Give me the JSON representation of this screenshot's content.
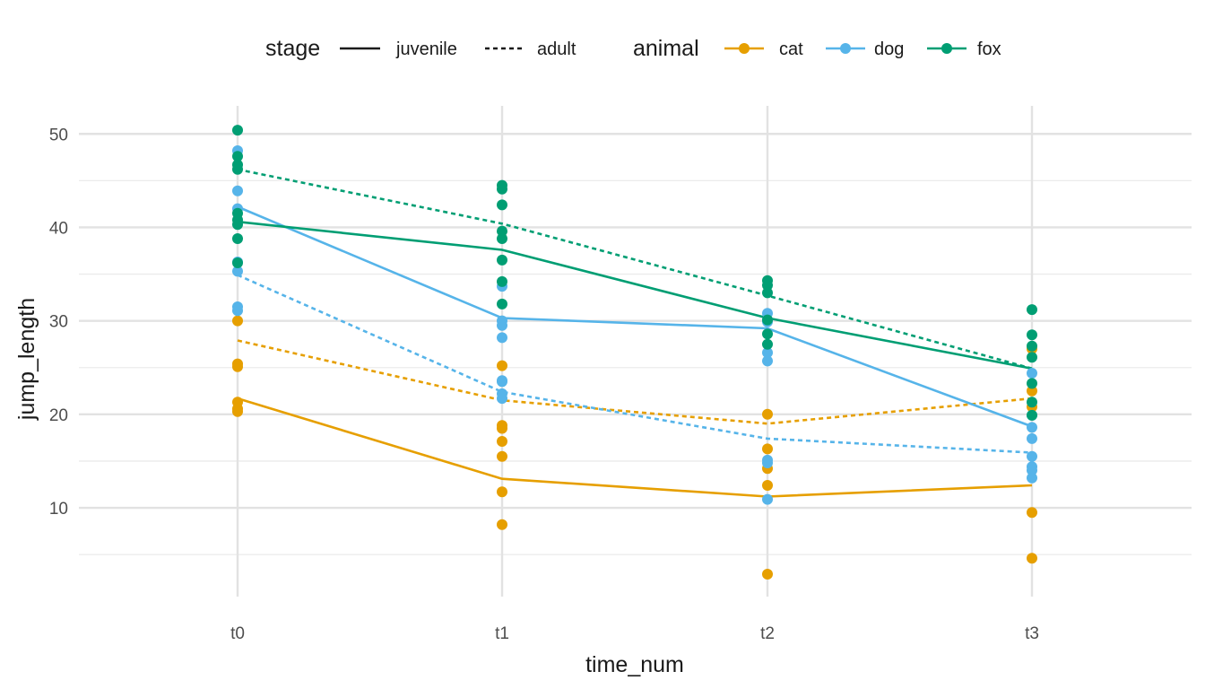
{
  "chart_data": {
    "type": "line",
    "xlabel": "time_num",
    "ylabel": "jump_length",
    "categories": [
      "t0",
      "t1",
      "t2",
      "t3"
    ],
    "ylim": [
      0.5,
      53
    ],
    "y_ticks": [
      10,
      20,
      30,
      40,
      50
    ],
    "y_minor_ticks": [
      5,
      15,
      25,
      35,
      45
    ],
    "grid": true,
    "legend_position": "top",
    "legend": {
      "stage": {
        "title": "stage",
        "entries": [
          {
            "label": "juvenile",
            "linetype": "solid"
          },
          {
            "label": "adult",
            "linetype": "dashed"
          }
        ]
      },
      "animal": {
        "title": "animal",
        "entries": [
          {
            "label": "cat",
            "color": "#E69F00"
          },
          {
            "label": "dog",
            "color": "#56B4E9"
          },
          {
            "label": "fox",
            "color": "#009E73"
          }
        ]
      }
    },
    "series": [
      {
        "animal": "cat",
        "stage": "juvenile",
        "color": "#E69F00",
        "linetype": "solid",
        "values": [
          21.7,
          13.1,
          11.2,
          12.4
        ]
      },
      {
        "animal": "cat",
        "stage": "adult",
        "color": "#E69F00",
        "linetype": "dashed",
        "values": [
          27.9,
          21.5,
          19.0,
          21.7
        ]
      },
      {
        "animal": "dog",
        "stage": "juvenile",
        "color": "#56B4E9",
        "linetype": "solid",
        "values": [
          42.2,
          30.3,
          29.2,
          18.7
        ]
      },
      {
        "animal": "dog",
        "stage": "adult",
        "color": "#56B4E9",
        "linetype": "dashed",
        "values": [
          34.9,
          22.4,
          17.4,
          15.9
        ]
      },
      {
        "animal": "fox",
        "stage": "juvenile",
        "color": "#009E73",
        "linetype": "solid",
        "values": [
          40.6,
          37.6,
          30.3,
          24.9
        ]
      },
      {
        "animal": "fox",
        "stage": "adult",
        "color": "#009E73",
        "linetype": "dashed",
        "values": [
          46.2,
          40.4,
          32.7,
          24.9
        ]
      }
    ],
    "points": [
      {
        "animal": "cat",
        "color": "#E69F00",
        "values": [
          [
            30.0,
            25.4,
            25.1,
            21.3,
            20.6,
            20.3
          ],
          [
            25.2,
            18.8,
            18.5,
            17.1,
            15.5,
            11.7,
            8.2
          ],
          [
            20.0,
            16.3,
            14.2,
            12.4,
            2.9
          ],
          [
            27.0,
            22.5,
            20.8,
            9.5,
            4.6
          ]
        ]
      },
      {
        "animal": "dog",
        "color": "#56B4E9",
        "values": [
          [
            48.2,
            43.9,
            42.0,
            36.3,
            35.3,
            31.5,
            31.1
          ],
          [
            33.7,
            30.0,
            29.5,
            28.2,
            23.6,
            23.5,
            22.2,
            21.7
          ],
          [
            30.8,
            30.1,
            29.9,
            26.6,
            25.7,
            15.1,
            14.8,
            10.9
          ],
          [
            24.4,
            19.9,
            18.6,
            17.4,
            15.5,
            14.4,
            14.0,
            13.2
          ]
        ]
      },
      {
        "animal": "fox",
        "color": "#009E73",
        "values": [
          [
            50.4,
            47.6,
            46.7,
            46.2,
            41.5,
            40.8,
            40.3,
            38.8,
            36.2
          ],
          [
            44.5,
            44.1,
            42.4,
            39.6,
            38.8,
            36.5,
            34.2,
            31.8
          ],
          [
            34.3,
            33.8,
            33.0,
            30.1,
            28.6,
            27.5
          ],
          [
            31.2,
            28.5,
            27.3,
            26.1,
            23.3,
            21.3,
            19.9
          ]
        ]
      }
    ]
  }
}
